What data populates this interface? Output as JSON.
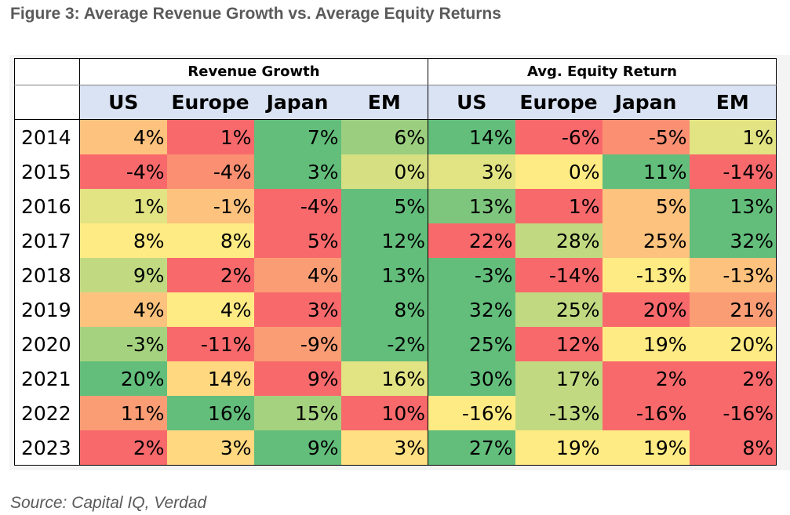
{
  "figure_title": "Figure 3: Average Revenue Growth vs. Average Equity Returns",
  "source_note": "Source: Capital IQ, Verdad",
  "colors": {
    "green": "#63be7b",
    "yellow": "#ffeb84",
    "red": "#f8696b",
    "header_fill": "#dae3f3"
  },
  "chart_data": {
    "type": "table",
    "title": "Figure 3: Average Revenue Growth vs. Average Equity Returns",
    "column_groups": [
      {
        "label": "Revenue Growth",
        "columns": [
          "US",
          "Europe",
          "Japan",
          "EM"
        ]
      },
      {
        "label": "Avg. Equity Return",
        "columns": [
          "US",
          "Europe",
          "Japan",
          "EM"
        ]
      }
    ],
    "rows": [
      {
        "year": "2014",
        "values": [
          "4%",
          "1%",
          "7%",
          "6%",
          "14%",
          "-6%",
          "-5%",
          "1%"
        ]
      },
      {
        "year": "2015",
        "values": [
          "-4%",
          "-4%",
          "3%",
          "0%",
          "3%",
          "0%",
          "11%",
          "-14%"
        ]
      },
      {
        "year": "2016",
        "values": [
          "1%",
          "-1%",
          "-4%",
          "5%",
          "13%",
          "1%",
          "5%",
          "13%"
        ]
      },
      {
        "year": "2017",
        "values": [
          "8%",
          "8%",
          "5%",
          "12%",
          "22%",
          "28%",
          "25%",
          "32%"
        ]
      },
      {
        "year": "2018",
        "values": [
          "9%",
          "2%",
          "4%",
          "13%",
          "-3%",
          "-14%",
          "-13%",
          "-13%"
        ]
      },
      {
        "year": "2019",
        "values": [
          "4%",
          "4%",
          "3%",
          "8%",
          "32%",
          "25%",
          "20%",
          "21%"
        ]
      },
      {
        "year": "2020",
        "values": [
          "-3%",
          "-11%",
          "-9%",
          "-2%",
          "25%",
          "12%",
          "19%",
          "20%"
        ]
      },
      {
        "year": "2021",
        "values": [
          "20%",
          "14%",
          "9%",
          "16%",
          "30%",
          "17%",
          "2%",
          "2%"
        ]
      },
      {
        "year": "2022",
        "values": [
          "11%",
          "16%",
          "15%",
          "10%",
          "-16%",
          "-13%",
          "-16%",
          "-16%"
        ]
      },
      {
        "year": "2023",
        "values": [
          "2%",
          "3%",
          "9%",
          "3%",
          "27%",
          "19%",
          "19%",
          "8%"
        ]
      }
    ],
    "cell_colors": [
      [
        "#fdc27d",
        "#f8696b",
        "#63be7b",
        "#9bcf7f",
        "#63be7b",
        "#f8696b",
        "#fa8f72",
        "#e2e383"
      ],
      [
        "#f8696b",
        "#fa8f72",
        "#63be7b",
        "#d6e082",
        "#e2e383",
        "#ffeb84",
        "#63be7b",
        "#f8696b"
      ],
      [
        "#e2e383",
        "#fdc27d",
        "#f8696b",
        "#63be7b",
        "#7ec67d",
        "#f8696b",
        "#fdc27d",
        "#63be7b"
      ],
      [
        "#ffeb84",
        "#ffeb84",
        "#f8696b",
        "#63be7b",
        "#f8696b",
        "#c1da81",
        "#fdc27d",
        "#63be7b"
      ],
      [
        "#c1da81",
        "#f8696b",
        "#fa9d75",
        "#63be7b",
        "#63be7b",
        "#f8696b",
        "#ffeb84",
        "#fdc27d"
      ],
      [
        "#fdc27d",
        "#ffeb84",
        "#f8696b",
        "#63be7b",
        "#63be7b",
        "#c1da81",
        "#f8696b",
        "#fa9d75"
      ],
      [
        "#a5d27f",
        "#f8696b",
        "#fa9d75",
        "#63be7b",
        "#63be7b",
        "#f8696b",
        "#ffeb84",
        "#ffeb84"
      ],
      [
        "#63be7b",
        "#ffd880",
        "#f8696b",
        "#e2e383",
        "#63be7b",
        "#c1da81",
        "#f8696b",
        "#f8696b"
      ],
      [
        "#fa9d75",
        "#63be7b",
        "#a5d27f",
        "#f8696b",
        "#ffeb84",
        "#c1da81",
        "#f8696b",
        "#f8696b"
      ],
      [
        "#f8696b",
        "#ffd880",
        "#63be7b",
        "#ffe082",
        "#63be7b",
        "#ffeb84",
        "#ffeb84",
        "#f8696b"
      ]
    ]
  }
}
